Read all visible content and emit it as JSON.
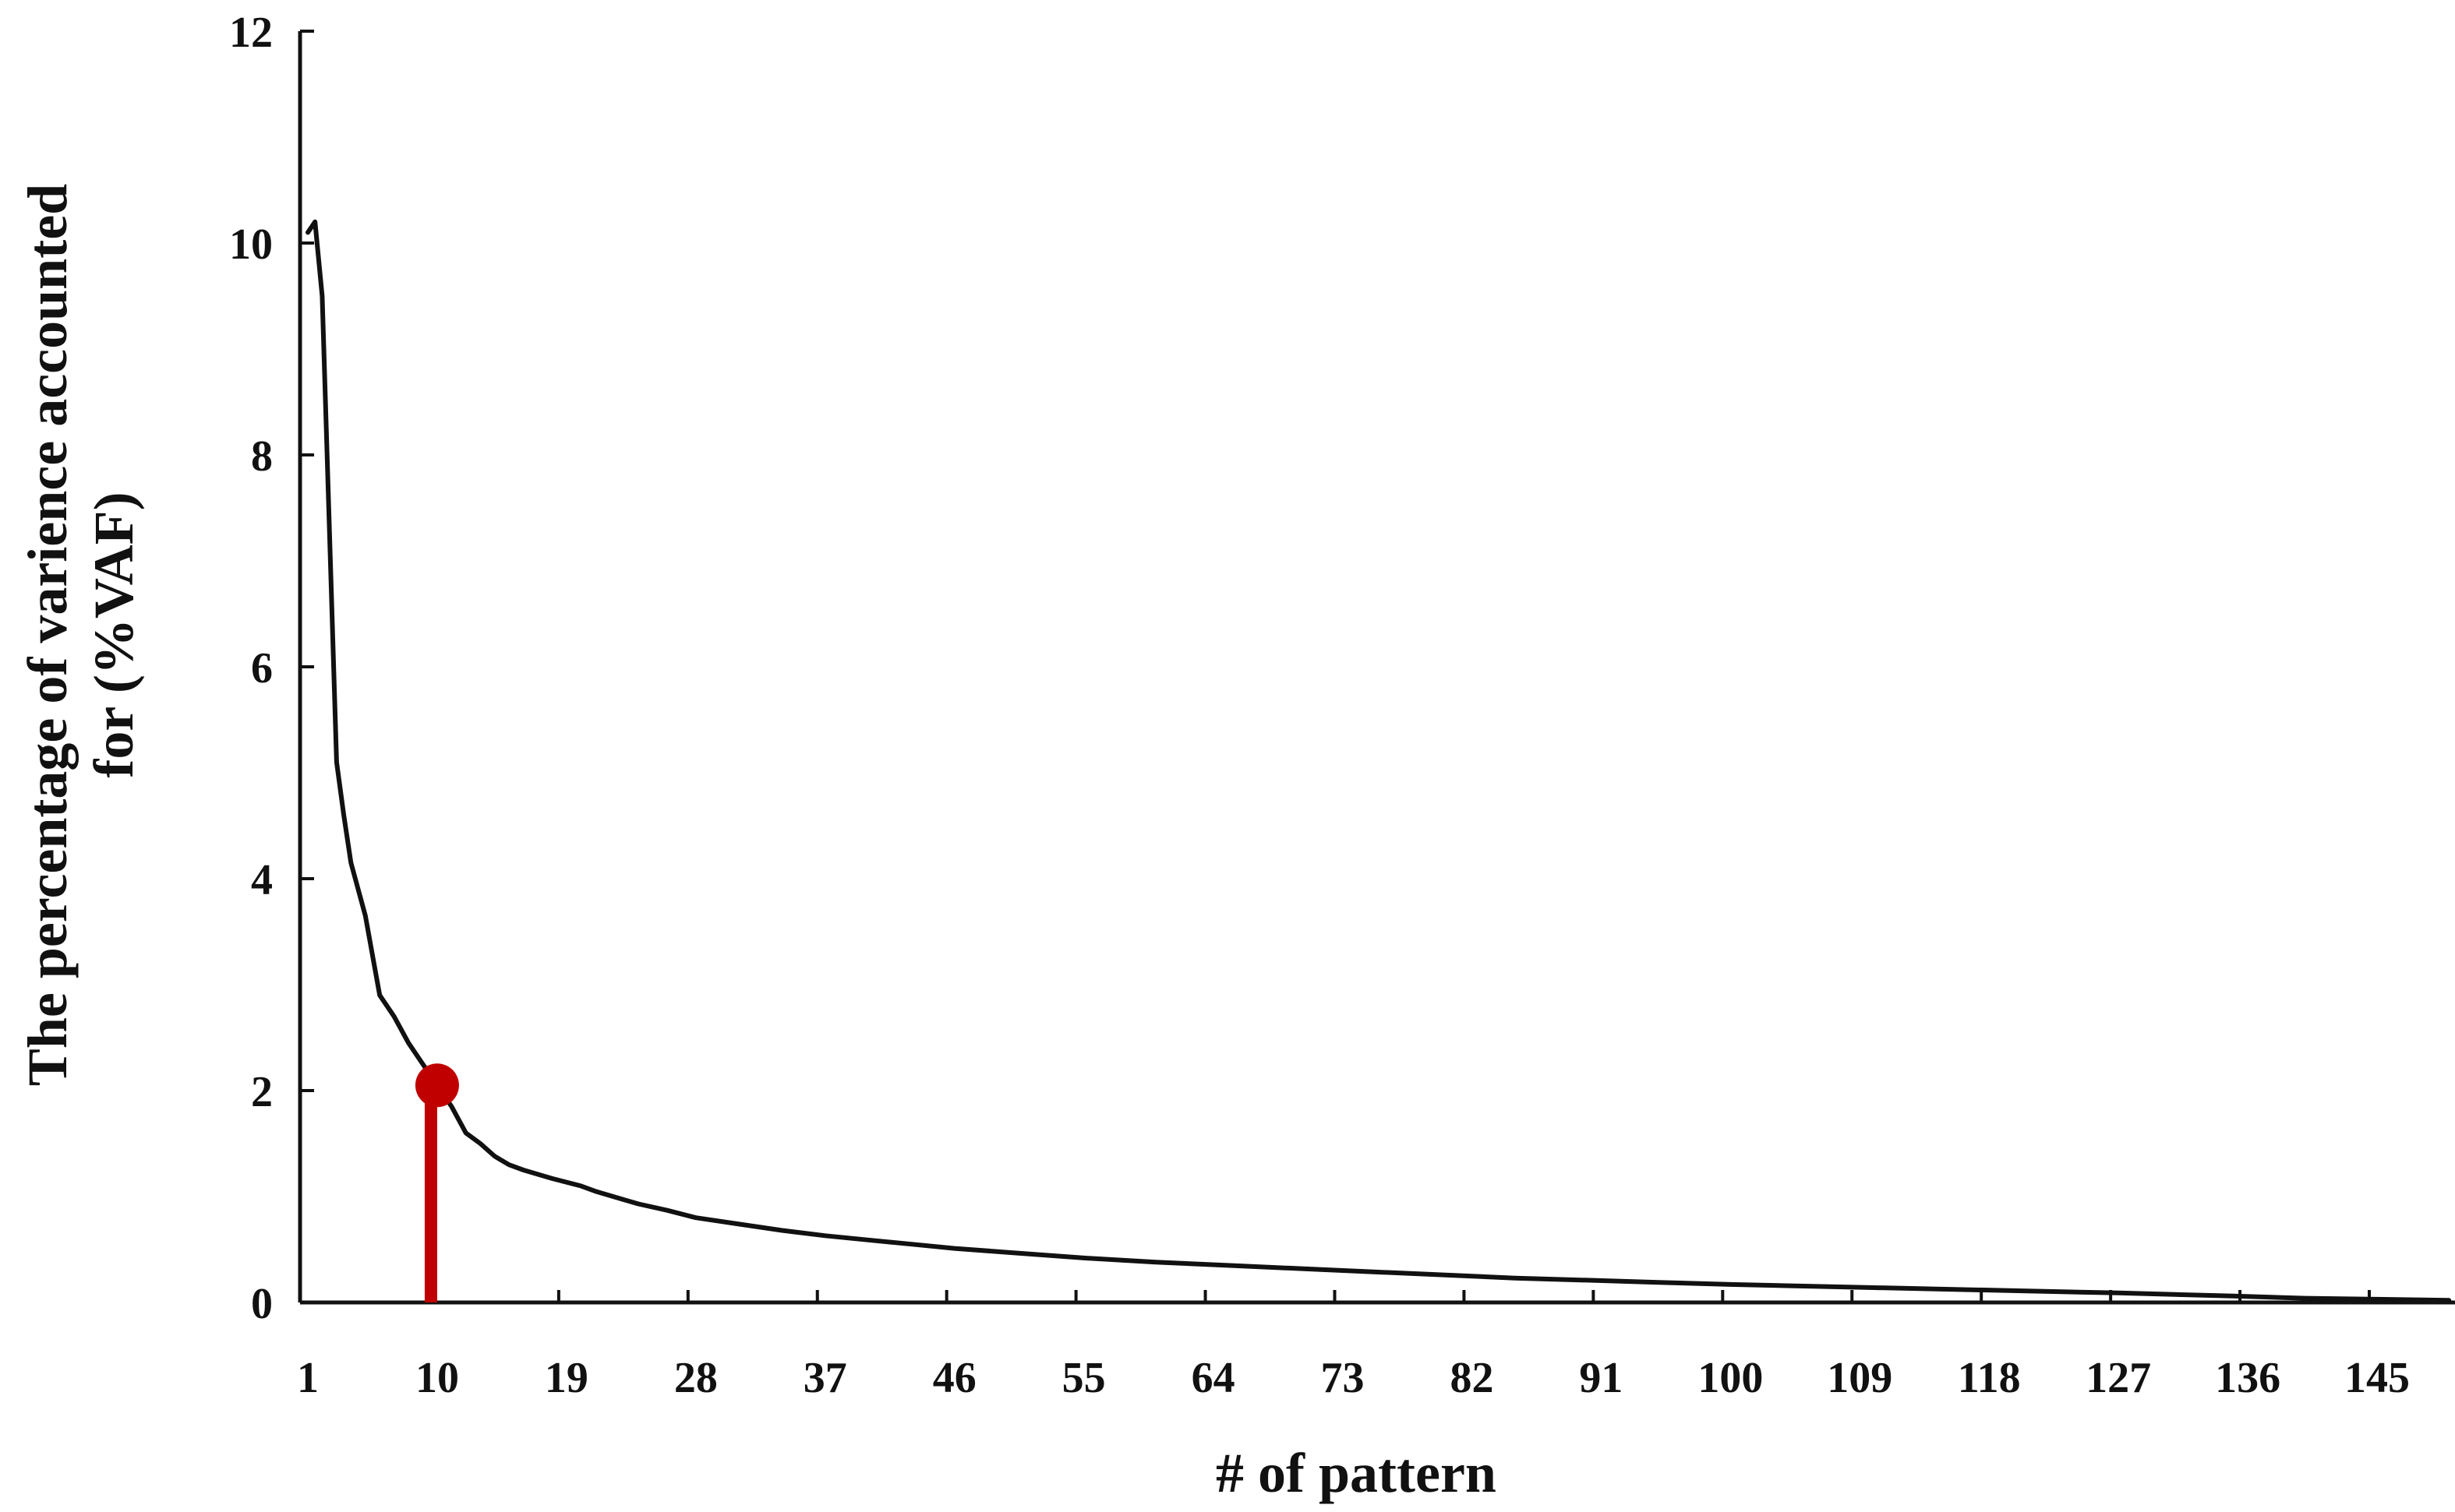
{
  "chart_data": {
    "type": "line",
    "title": "",
    "xlabel": "# of pattern",
    "ylabel_lines": [
      "The percentage of varience accounted",
      "for (%VAF)"
    ],
    "xlim": [
      1,
      150
    ],
    "ylim": [
      0,
      12
    ],
    "x_ticks": [
      1,
      10,
      19,
      28,
      37,
      46,
      55,
      64,
      73,
      82,
      91,
      100,
      109,
      118,
      127,
      136,
      145
    ],
    "y_ticks": [
      0,
      2,
      4,
      6,
      8,
      10,
      12
    ],
    "grid": false,
    "legend": "none",
    "colors": {
      "line": "#111111",
      "axis": "#111111",
      "highlight": "#c00000"
    },
    "series": [
      {
        "x": [
          1,
          1.5,
          2,
          3,
          3.5,
          4,
          5,
          6,
          7,
          8,
          9,
          10,
          11,
          12,
          13,
          14,
          15,
          16,
          18,
          20,
          21,
          23,
          24,
          26,
          28,
          31,
          34,
          37,
          40,
          43,
          46,
          50,
          55,
          60,
          65,
          70,
          75,
          80,
          85,
          90,
          95,
          100,
          110,
          120,
          127,
          135,
          140,
          145,
          150
        ],
        "y": [
          10.1,
          10.2,
          9.5,
          5.1,
          4.6,
          4.15,
          3.65,
          2.9,
          2.7,
          2.45,
          2.25,
          2.05,
          1.85,
          1.6,
          1.5,
          1.38,
          1.3,
          1.25,
          1.17,
          1.1,
          1.05,
          0.97,
          0.93,
          0.87,
          0.8,
          0.74,
          0.68,
          0.63,
          0.59,
          0.55,
          0.51,
          0.47,
          0.42,
          0.38,
          0.35,
          0.32,
          0.29,
          0.26,
          0.23,
          0.21,
          0.19,
          0.17,
          0.14,
          0.11,
          0.09,
          0.06,
          0.04,
          0.03,
          0.02
        ]
      }
    ],
    "highlight": {
      "x": 10,
      "y": 2.05
    }
  }
}
